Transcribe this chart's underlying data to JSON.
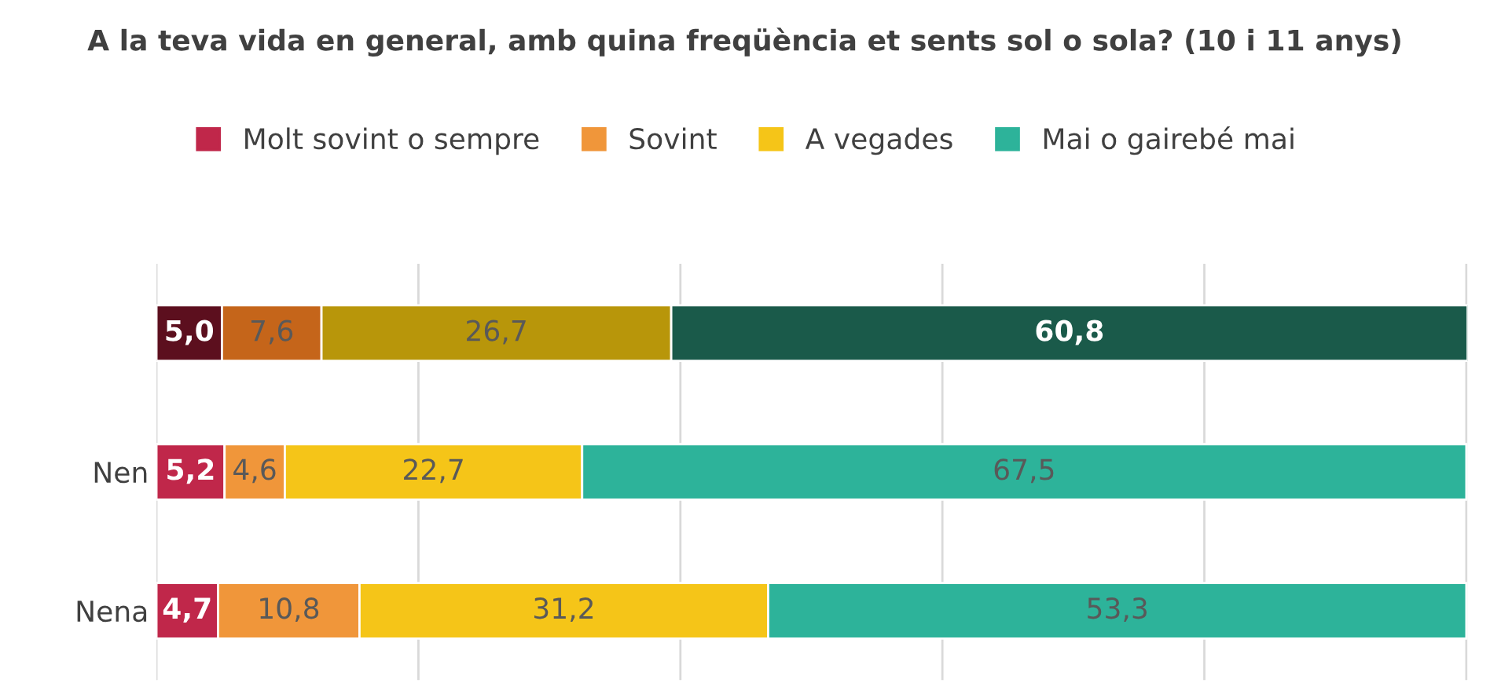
{
  "chart_data": {
    "type": "bar",
    "orientation": "horizontal",
    "stacked": true,
    "title": "A la teva vida en general, amb quina freqüència et sents sol o sola? (10 i 11 anys)",
    "categories": [
      null,
      "Nen",
      "Nena"
    ],
    "series": [
      {
        "name": "Molt sovint o sempre",
        "color": "#c0274a",
        "colors": [
          "#5c0f1e",
          "#c0274a",
          "#c0274a"
        ],
        "values": [
          5.0,
          5.2,
          4.7
        ],
        "value_labels": [
          "5,0",
          "5,2",
          "4,7"
        ]
      },
      {
        "name": "Sovint",
        "color": "#f0963a",
        "colors": [
          "#c5651a",
          "#f0963a",
          "#f0963a"
        ],
        "values": [
          7.6,
          4.6,
          10.8
        ],
        "value_labels": [
          "7,6",
          "4,6",
          "10,8"
        ]
      },
      {
        "name": "A vegades",
        "color": "#f5c518",
        "colors": [
          "#b8960a",
          "#f5c518",
          "#f5c518"
        ],
        "values": [
          26.7,
          22.7,
          31.2
        ],
        "value_labels": [
          "26,7",
          "22,7",
          "31,2"
        ]
      },
      {
        "name": "Mai o gairebé mai",
        "color": "#2db39a",
        "colors": [
          "#1a5a4a",
          "#2db39a",
          "#2db39a"
        ],
        "values": [
          60.8,
          67.5,
          53.3
        ],
        "value_labels": [
          "60,8",
          "67,5",
          "53,3"
        ]
      }
    ],
    "grid": "x",
    "tick_labels": "y",
    "legend": "top"
  }
}
